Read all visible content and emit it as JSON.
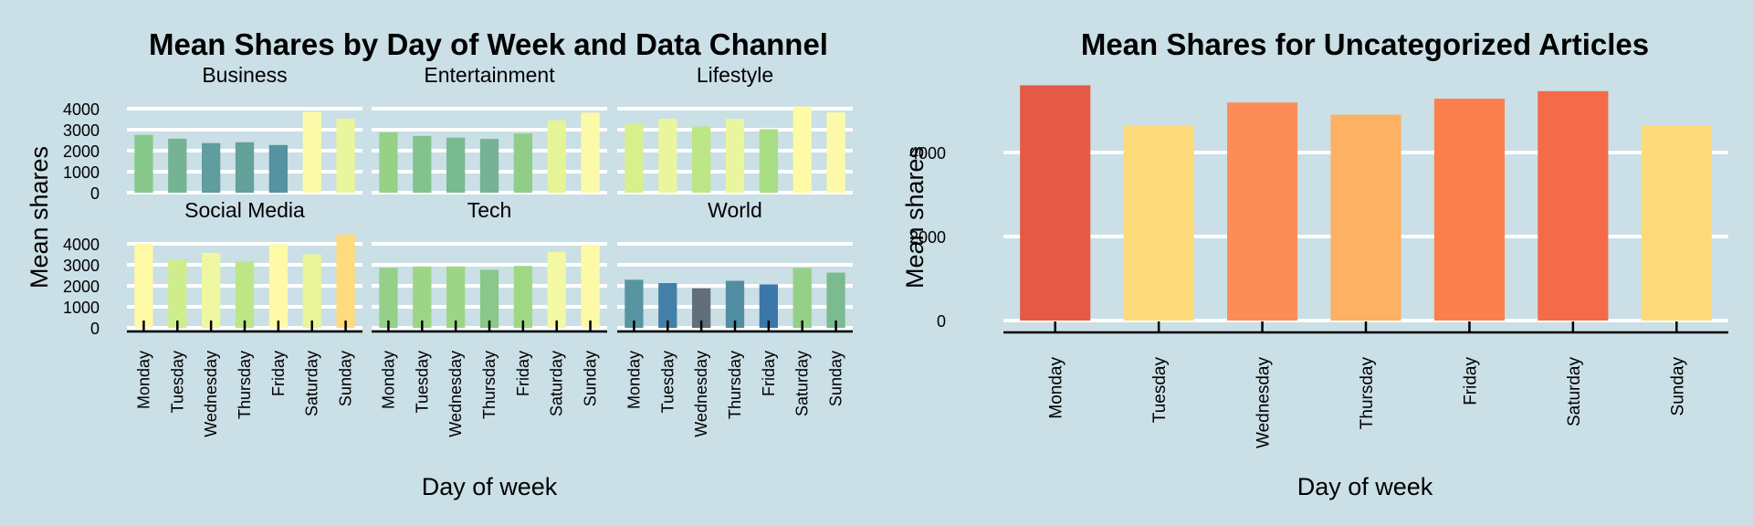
{
  "chart_data": [
    {
      "type": "bar",
      "title": "Mean Shares by Day of Week and Data Channel",
      "xlabel": "Day of week",
      "ylabel": "Mean shares",
      "ylim": [
        0,
        4000
      ],
      "yticks": [
        0,
        1000,
        2000,
        3000,
        4000
      ],
      "categories": [
        "Monday",
        "Tuesday",
        "Wednesday",
        "Thursday",
        "Friday",
        "Saturday",
        "Sunday"
      ],
      "facets": [
        {
          "name": "Business",
          "values": [
            2750,
            2570,
            2360,
            2400,
            2270,
            3850,
            3520
          ]
        },
        {
          "name": "Entertainment",
          "values": [
            2870,
            2700,
            2620,
            2560,
            2820,
            3450,
            3810
          ]
        },
        {
          "name": "Lifestyle",
          "values": [
            3300,
            3520,
            3150,
            3520,
            3020,
            4100,
            3820
          ]
        },
        {
          "name": "Social Media",
          "values": [
            3990,
            3260,
            3570,
            3150,
            3980,
            3500,
            4450
          ]
        },
        {
          "name": "Tech",
          "values": [
            2850,
            2920,
            2920,
            2760,
            2950,
            3620,
            3950
          ]
        },
        {
          "name": "World",
          "values": [
            2290,
            2130,
            1880,
            2240,
            2070,
            2850,
            2630
          ]
        }
      ],
      "color_scale": "Spectral (low = dark teal/blue, high = yellow/orange)"
    },
    {
      "type": "bar",
      "title": "Mean Shares for Uncategorized Articles",
      "xlabel": "Day of week",
      "ylabel": "Mean shares",
      "ylim": [
        0,
        5600
      ],
      "yticks": [
        0,
        2000,
        4000
      ],
      "categories": [
        "Monday",
        "Tuesday",
        "Wednesday",
        "Thursday",
        "Friday",
        "Saturday",
        "Sunday"
      ],
      "values": [
        5600,
        4630,
        5190,
        4900,
        5280,
        5460,
        4650
      ],
      "colors": [
        "#e55a45",
        "#fedb7a",
        "#fc8d59",
        "#fdb163",
        "#fa7f4c",
        "#f46b4a",
        "#fedb7a"
      ]
    }
  ]
}
